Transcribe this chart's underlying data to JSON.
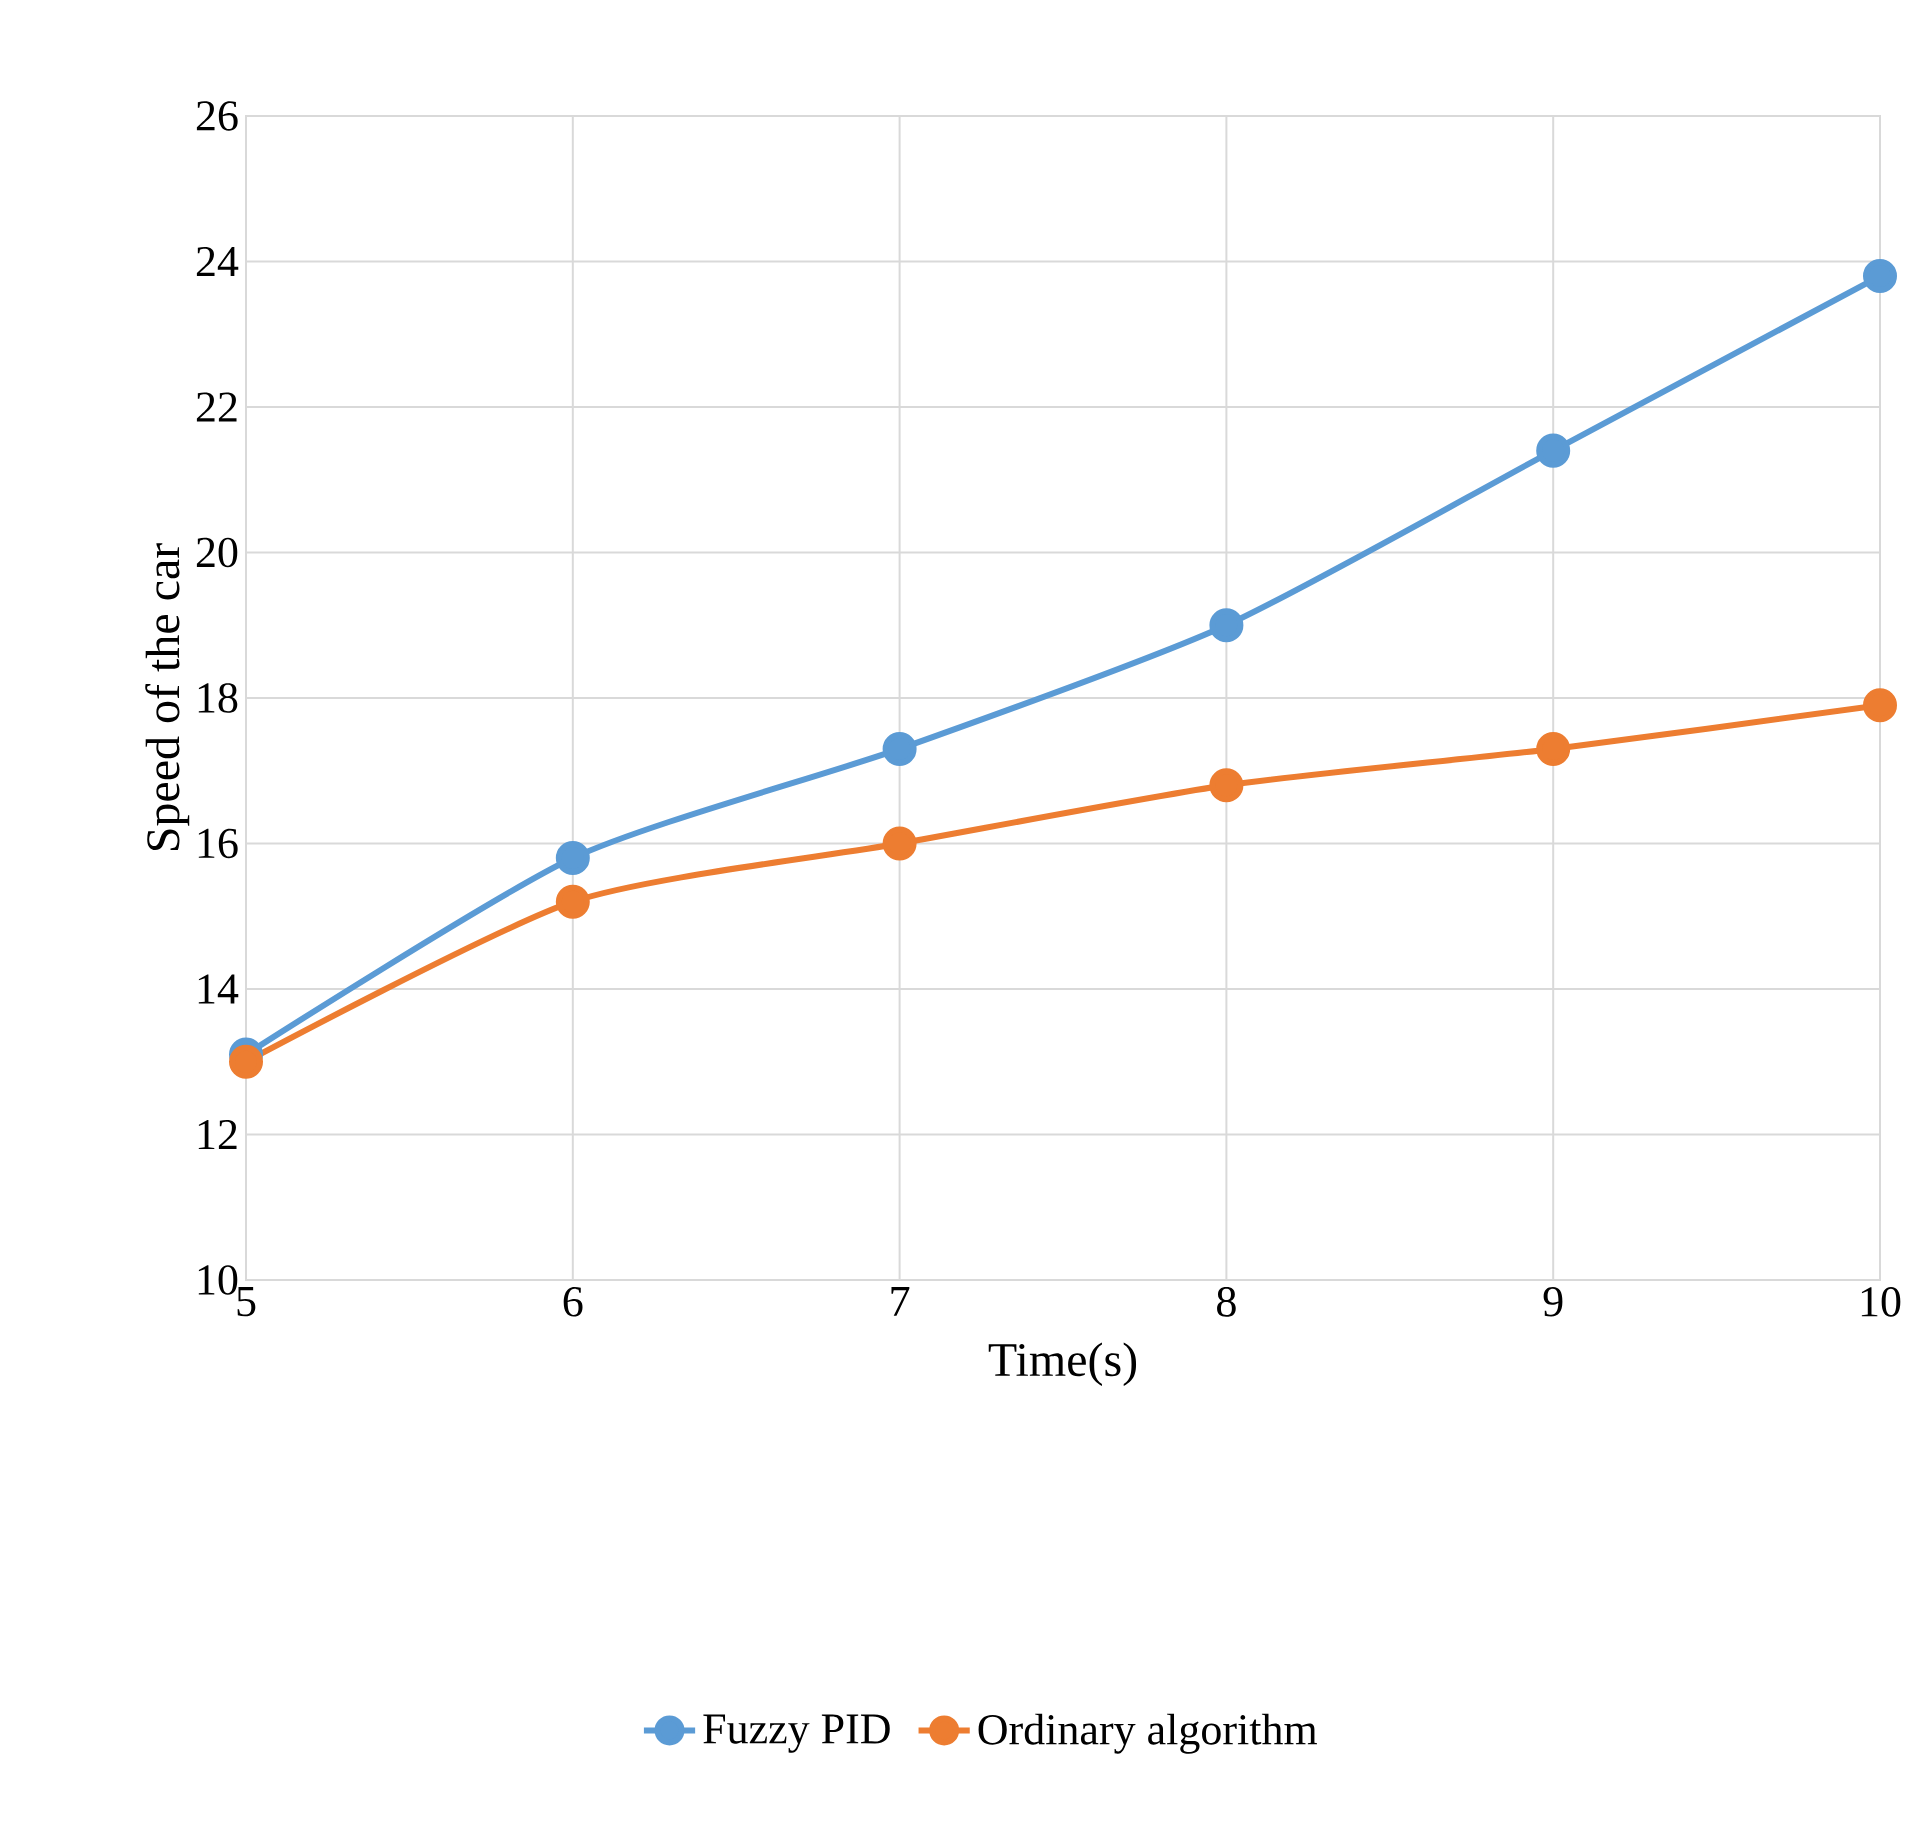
{
  "chart_data": {
    "type": "line",
    "xlabel": "Time(s)",
    "ylabel": "Speed of the car",
    "x": [
      5,
      6,
      7,
      8,
      9,
      10
    ],
    "series": [
      {
        "name": "Fuzzy PID",
        "color": "#5b9bd5",
        "values": [
          13.1,
          15.8,
          17.3,
          19.0,
          21.4,
          23.8
        ]
      },
      {
        "name": "Ordinary algorithm",
        "color": "#ed7d31",
        "values": [
          13.0,
          15.2,
          16.0,
          16.8,
          17.3,
          17.9
        ]
      }
    ],
    "xlim": [
      5,
      10
    ],
    "ylim": [
      10,
      26
    ],
    "xticks": [
      5,
      6,
      7,
      8,
      9,
      10
    ],
    "yticks": [
      10,
      12,
      14,
      16,
      18,
      20,
      22,
      24,
      26
    ],
    "grid": true,
    "legend": "bottom",
    "marker": "circle",
    "line_style": "solid"
  }
}
